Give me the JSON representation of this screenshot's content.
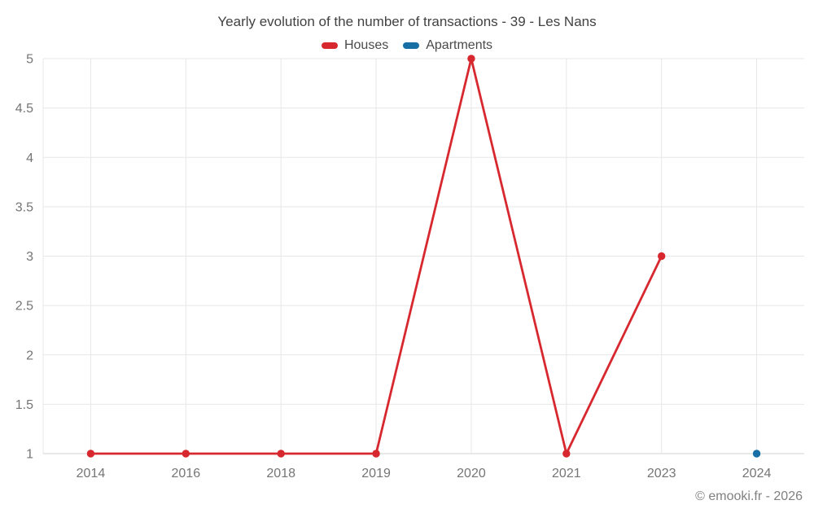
{
  "chart_data": {
    "type": "line",
    "title": "Yearly evolution of the number of transactions - 39 - Les Nans",
    "categories": [
      "2014",
      "2016",
      "2018",
      "2019",
      "2020",
      "2021",
      "2023",
      "2024"
    ],
    "series": [
      {
        "name": "Houses",
        "color": "#d7282f",
        "values": [
          1,
          1,
          1,
          1,
          5,
          1,
          3,
          null
        ]
      },
      {
        "name": "Apartments",
        "color": "#176fa5",
        "values": [
          null,
          null,
          null,
          null,
          null,
          null,
          null,
          1
        ]
      }
    ],
    "ylim": [
      1,
      5
    ],
    "ytick_step": 0.5,
    "ytick_labels": [
      "1",
      "1.5",
      "2",
      "2.5",
      "3",
      "3.5",
      "4",
      "4.5",
      "5"
    ],
    "grid": true,
    "legend_position": "top",
    "xlabel": "",
    "ylabel": ""
  },
  "footer": {
    "copyright": "© emooki.fr - 2026"
  },
  "colors": {
    "grid": "#e7e7e7",
    "axis": "#d2d2d2",
    "tick_label": "#757575",
    "title_text": "#424242",
    "background": "#ffffff"
  }
}
